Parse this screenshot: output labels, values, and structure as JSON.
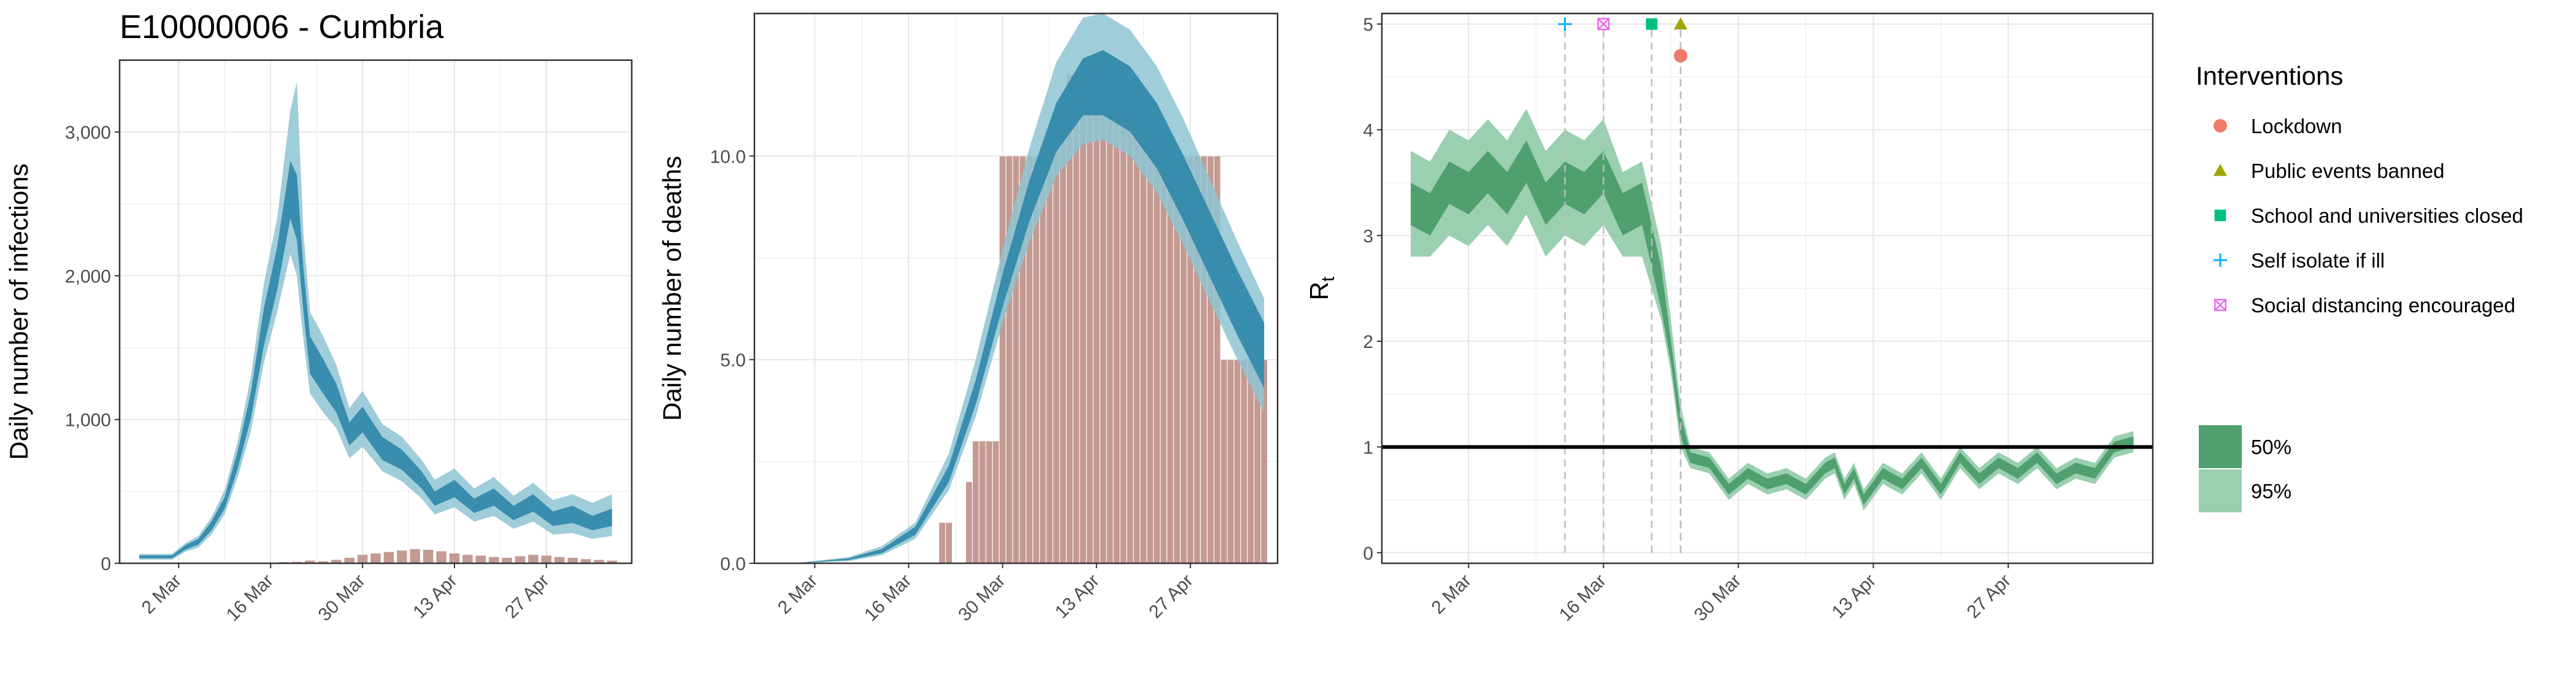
{
  "title": "E10000006 - Cumbria",
  "colors": {
    "infection_ci95": "#8ec4d2",
    "infection_ci50": "#2e86a8",
    "bars": "#c49a92",
    "rt_ci95": "#9acfaf",
    "rt_ci50": "#4f9f6f",
    "lockdown": "#f07a6b",
    "public_events": "#a3a500",
    "school": "#00bf7d",
    "self_isolate": "#00b0f6",
    "social_distancing": "#e76bf3"
  },
  "chart_data": [
    {
      "type": "area",
      "name": "infections",
      "ylabel": "Daily number of infections",
      "xlabel": "",
      "ylim": [
        0,
        3500
      ],
      "yticks": [
        0,
        1000,
        2000,
        3000
      ],
      "ytick_labels": [
        "0",
        "1,000",
        "2,000",
        "3,000"
      ],
      "xticks": [
        "2020-03-02",
        "2020-03-16",
        "2020-03-30",
        "2020-04-13",
        "2020-04-27"
      ],
      "xtick_labels": [
        "2 Mar",
        "16 Mar",
        "30 Mar",
        "13 Apr",
        "27 Apr"
      ],
      "xlim": [
        "2020-02-22",
        "2020-05-10"
      ],
      "grid": true,
      "series_points": [
        [
          "2020-02-25",
          45,
          35,
          55,
          25,
          65
        ],
        [
          "2020-03-01",
          45,
          35,
          55,
          25,
          65
        ],
        [
          "2020-03-03",
          110,
          95,
          125,
          80,
          140
        ],
        [
          "2020-03-05",
          150,
          130,
          170,
          110,
          190
        ],
        [
          "2020-03-07",
          260,
          230,
          290,
          200,
          320
        ],
        [
          "2020-03-09",
          420,
          380,
          460,
          340,
          510
        ],
        [
          "2020-03-11",
          720,
          660,
          780,
          600,
          850
        ],
        [
          "2020-03-13",
          1100,
          1010,
          1190,
          920,
          1300
        ],
        [
          "2020-03-15",
          1650,
          1520,
          1780,
          1400,
          1950
        ],
        [
          "2020-03-17",
          2050,
          1900,
          2200,
          1750,
          2400
        ],
        [
          "2020-03-19",
          2600,
          2400,
          2800,
          2150,
          3150
        ],
        [
          "2020-03-20",
          2480,
          2250,
          2700,
          2000,
          3350
        ],
        [
          "2020-03-21",
          1900,
          1750,
          2050,
          1550,
          2300
        ],
        [
          "2020-03-22",
          1450,
          1320,
          1580,
          1180,
          1750
        ],
        [
          "2020-03-24",
          1300,
          1180,
          1420,
          1050,
          1580
        ],
        [
          "2020-03-26",
          1150,
          1050,
          1250,
          940,
          1380
        ],
        [
          "2020-03-28",
          900,
          820,
          980,
          730,
          1080
        ],
        [
          "2020-03-30",
          1000,
          910,
          1090,
          810,
          1200
        ],
        [
          "2020-04-02",
          800,
          720,
          880,
          640,
          970
        ],
        [
          "2020-04-05",
          720,
          650,
          790,
          570,
          880
        ],
        [
          "2020-04-08",
          580,
          520,
          640,
          450,
          720
        ],
        [
          "2020-04-10",
          450,
          400,
          500,
          340,
          580
        ],
        [
          "2020-04-13",
          520,
          460,
          580,
          390,
          660
        ],
        [
          "2020-04-16",
          400,
          350,
          450,
          290,
          520
        ],
        [
          "2020-04-19",
          460,
          400,
          520,
          330,
          600
        ],
        [
          "2020-04-22",
          350,
          300,
          400,
          240,
          470
        ],
        [
          "2020-04-25",
          420,
          360,
          480,
          290,
          560
        ],
        [
          "2020-04-28",
          310,
          260,
          360,
          200,
          440
        ],
        [
          "2020-05-01",
          340,
          280,
          400,
          210,
          480
        ],
        [
          "2020-05-04",
          280,
          230,
          330,
          170,
          420
        ],
        [
          "2020-05-07",
          320,
          260,
          380,
          190,
          480
        ]
      ],
      "series_fields": [
        "date",
        "median",
        "ci50_low",
        "ci50_high",
        "ci95_low",
        "ci95_high"
      ],
      "bars": {
        "dates": [
          "2020-03-18",
          "2020-03-20",
          "2020-03-22",
          "2020-03-24",
          "2020-03-26",
          "2020-03-28",
          "2020-03-30",
          "2020-04-01",
          "2020-04-03",
          "2020-04-05",
          "2020-04-07",
          "2020-04-09",
          "2020-04-11",
          "2020-04-13",
          "2020-04-15",
          "2020-04-17",
          "2020-04-19",
          "2020-04-21",
          "2020-04-23",
          "2020-04-25",
          "2020-04-27",
          "2020-04-29",
          "2020-05-01",
          "2020-05-03",
          "2020-05-05",
          "2020-05-07"
        ],
        "values": [
          10,
          12,
          20,
          15,
          25,
          40,
          60,
          70,
          80,
          90,
          100,
          95,
          85,
          70,
          60,
          55,
          45,
          40,
          50,
          60,
          55,
          45,
          40,
          30,
          25,
          20
        ]
      }
    },
    {
      "type": "bar",
      "name": "deaths",
      "ylabel": "Daily number of deaths",
      "xlabel": "",
      "ylim": [
        0,
        13.5
      ],
      "yticks": [
        0,
        5,
        10
      ],
      "ytick_labels": [
        "0.0",
        "5.0",
        "10.0"
      ],
      "xticks": [
        "2020-03-02",
        "2020-03-16",
        "2020-03-30",
        "2020-04-13",
        "2020-04-27"
      ],
      "xtick_labels": [
        "2 Mar",
        "16 Mar",
        "30 Mar",
        "13 Apr",
        "27 Apr"
      ],
      "xlim": [
        "2020-02-22",
        "2020-05-10"
      ],
      "grid": true,
      "bars": {
        "dates": [
          "2020-03-21",
          "2020-03-22",
          "2020-03-25",
          "2020-03-26",
          "2020-03-27",
          "2020-03-28",
          "2020-03-29",
          "2020-03-30",
          "2020-03-31",
          "2020-04-01",
          "2020-04-02",
          "2020-04-03",
          "2020-04-04",
          "2020-04-05",
          "2020-04-06",
          "2020-04-07",
          "2020-04-08",
          "2020-04-09",
          "2020-04-10",
          "2020-04-11",
          "2020-04-12",
          "2020-04-13",
          "2020-04-14",
          "2020-04-15",
          "2020-04-16",
          "2020-04-17",
          "2020-04-18",
          "2020-04-19",
          "2020-04-20",
          "2020-04-21",
          "2020-04-22",
          "2020-04-23",
          "2020-04-24",
          "2020-04-25",
          "2020-04-26",
          "2020-04-27",
          "2020-04-28",
          "2020-04-29",
          "2020-04-30",
          "2020-05-01",
          "2020-05-02",
          "2020-05-03",
          "2020-05-04",
          "2020-05-05",
          "2020-05-06",
          "2020-05-07",
          "2020-05-08"
        ],
        "values": [
          1,
          1,
          2,
          3,
          3,
          3,
          3,
          10,
          10,
          10,
          10,
          10,
          10,
          10,
          10,
          11,
          11,
          12,
          12,
          12,
          12,
          12,
          12,
          11,
          11,
          11,
          11,
          12,
          11,
          10,
          10,
          10,
          10,
          10,
          10,
          10,
          10,
          10,
          10,
          10,
          5,
          5,
          5,
          5,
          5,
          5,
          5
        ]
      },
      "series_points": [
        [
          "2020-02-28",
          0.0,
          0.0,
          0.0,
          0.0,
          0.0
        ],
        [
          "2020-03-07",
          0.1,
          0.08,
          0.12,
          0.05,
          0.15
        ],
        [
          "2020-03-12",
          0.3,
          0.25,
          0.35,
          0.2,
          0.42
        ],
        [
          "2020-03-17",
          0.8,
          0.7,
          0.9,
          0.6,
          1.0
        ],
        [
          "2020-03-22",
          2.2,
          2.0,
          2.4,
          1.8,
          2.7
        ],
        [
          "2020-03-26",
          4.2,
          3.9,
          4.5,
          3.6,
          5.0
        ],
        [
          "2020-03-30",
          6.7,
          6.3,
          7.1,
          5.9,
          7.7
        ],
        [
          "2020-04-03",
          8.9,
          8.4,
          9.4,
          7.9,
          10.2
        ],
        [
          "2020-04-07",
          10.7,
          10.1,
          11.3,
          9.5,
          12.3
        ],
        [
          "2020-04-11",
          11.7,
          11.0,
          12.4,
          10.3,
          13.4
        ],
        [
          "2020-04-14",
          11.8,
          11.0,
          12.6,
          10.4,
          13.5
        ],
        [
          "2020-04-18",
          11.4,
          10.6,
          12.2,
          10.0,
          13.1
        ],
        [
          "2020-04-22",
          10.5,
          9.7,
          11.3,
          9.1,
          12.2
        ],
        [
          "2020-04-26",
          9.2,
          8.4,
          10.0,
          7.8,
          10.9
        ],
        [
          "2020-04-30",
          7.8,
          7.0,
          8.6,
          6.4,
          9.4
        ],
        [
          "2020-05-04",
          6.4,
          5.6,
          7.2,
          5.0,
          7.9
        ],
        [
          "2020-05-08",
          5.1,
          4.3,
          5.9,
          3.7,
          6.5
        ]
      ],
      "series_fields": [
        "date",
        "median",
        "ci50_low",
        "ci50_high",
        "ci95_low",
        "ci95_high"
      ]
    },
    {
      "type": "area",
      "name": "rt",
      "ylabel": "R",
      "ylabel_subscript": "t",
      "xlabel": "",
      "ylim": [
        -0.1,
        5.1
      ],
      "yticks": [
        0,
        1,
        2,
        3,
        4,
        5
      ],
      "ytick_labels": [
        "0",
        "1",
        "2",
        "3",
        "4",
        "5"
      ],
      "xticks": [
        "2020-03-02",
        "2020-03-16",
        "2020-03-30",
        "2020-04-13",
        "2020-04-27"
      ],
      "xtick_labels": [
        "2 Mar",
        "16 Mar",
        "30 Mar",
        "13 Apr",
        "27 Apr"
      ],
      "xlim": [
        "2020-02-22",
        "2020-05-12"
      ],
      "grid": true,
      "reference_line": 1,
      "series_points": [
        [
          "2020-02-25",
          3.3,
          3.1,
          3.5,
          2.8,
          3.8
        ],
        [
          "2020-02-27",
          3.2,
          3.0,
          3.4,
          2.8,
          3.7
        ],
        [
          "2020-02-29",
          3.5,
          3.3,
          3.7,
          3.0,
          4.0
        ],
        [
          "2020-03-02",
          3.4,
          3.2,
          3.6,
          2.9,
          3.9
        ],
        [
          "2020-03-04",
          3.6,
          3.4,
          3.8,
          3.1,
          4.1
        ],
        [
          "2020-03-06",
          3.4,
          3.2,
          3.6,
          2.9,
          3.9
        ],
        [
          "2020-03-08",
          3.7,
          3.5,
          3.9,
          3.2,
          4.2
        ],
        [
          "2020-03-10",
          3.3,
          3.1,
          3.5,
          2.8,
          3.8
        ],
        [
          "2020-03-12",
          3.5,
          3.3,
          3.7,
          3.0,
          4.0
        ],
        [
          "2020-03-14",
          3.4,
          3.2,
          3.6,
          2.9,
          3.9
        ],
        [
          "2020-03-16",
          3.6,
          3.4,
          3.8,
          3.1,
          4.1
        ],
        [
          "2020-03-18",
          3.2,
          3.0,
          3.4,
          2.8,
          3.6
        ],
        [
          "2020-03-20",
          3.3,
          3.1,
          3.5,
          2.8,
          3.7
        ],
        [
          "2020-03-22",
          2.5,
          2.3,
          2.7,
          2.2,
          2.9
        ],
        [
          "2020-03-23",
          1.9,
          1.8,
          2.0,
          1.7,
          2.2
        ],
        [
          "2020-03-24",
          1.2,
          1.1,
          1.3,
          1.0,
          1.4
        ],
        [
          "2020-03-25",
          0.9,
          0.85,
          0.95,
          0.8,
          1.0
        ],
        [
          "2020-03-27",
          0.85,
          0.8,
          0.9,
          0.75,
          0.95
        ],
        [
          "2020-03-29",
          0.6,
          0.55,
          0.65,
          0.5,
          0.7
        ],
        [
          "2020-03-31",
          0.75,
          0.7,
          0.8,
          0.65,
          0.85
        ],
        [
          "2020-04-02",
          0.65,
          0.6,
          0.7,
          0.55,
          0.75
        ],
        [
          "2020-04-04",
          0.7,
          0.65,
          0.75,
          0.6,
          0.8
        ],
        [
          "2020-04-06",
          0.6,
          0.55,
          0.65,
          0.5,
          0.7
        ],
        [
          "2020-04-08",
          0.8,
          0.75,
          0.85,
          0.7,
          0.9
        ],
        [
          "2020-04-09",
          0.85,
          0.8,
          0.9,
          0.75,
          0.95
        ],
        [
          "2020-04-10",
          0.6,
          0.55,
          0.65,
          0.5,
          0.7
        ],
        [
          "2020-04-11",
          0.75,
          0.7,
          0.8,
          0.65,
          0.85
        ],
        [
          "2020-04-12",
          0.5,
          0.45,
          0.55,
          0.4,
          0.6
        ],
        [
          "2020-04-14",
          0.75,
          0.7,
          0.8,
          0.65,
          0.85
        ],
        [
          "2020-04-16",
          0.65,
          0.6,
          0.7,
          0.55,
          0.75
        ],
        [
          "2020-04-18",
          0.85,
          0.8,
          0.9,
          0.75,
          0.95
        ],
        [
          "2020-04-20",
          0.6,
          0.55,
          0.65,
          0.5,
          0.7
        ],
        [
          "2020-04-22",
          0.9,
          0.85,
          0.95,
          0.8,
          1.0
        ],
        [
          "2020-04-24",
          0.7,
          0.65,
          0.75,
          0.6,
          0.8
        ],
        [
          "2020-04-26",
          0.85,
          0.8,
          0.9,
          0.75,
          0.95
        ],
        [
          "2020-04-28",
          0.75,
          0.7,
          0.8,
          0.65,
          0.85
        ],
        [
          "2020-04-30",
          0.9,
          0.85,
          0.95,
          0.8,
          1.0
        ],
        [
          "2020-05-02",
          0.7,
          0.65,
          0.75,
          0.6,
          0.8
        ],
        [
          "2020-05-04",
          0.8,
          0.75,
          0.85,
          0.7,
          0.9
        ],
        [
          "2020-05-06",
          0.75,
          0.7,
          0.8,
          0.65,
          0.85
        ],
        [
          "2020-05-08",
          1.0,
          0.95,
          1.05,
          0.9,
          1.1
        ],
        [
          "2020-05-10",
          1.05,
          1.0,
          1.1,
          0.95,
          1.15
        ]
      ],
      "series_fields": [
        "date",
        "median",
        "ci50_low",
        "ci50_high",
        "ci95_low",
        "ci95_high"
      ],
      "interventions": [
        {
          "label": "Self isolate if ill",
          "date": "2020-03-12",
          "shape": "plus",
          "color_key": "self_isolate",
          "y": 5.0
        },
        {
          "label": "Social distancing encouraged",
          "date": "2020-03-16",
          "shape": "boxx",
          "color_key": "social_distancing",
          "y": 5.0
        },
        {
          "label": "School and universities closed",
          "date": "2020-03-21",
          "shape": "square",
          "color_key": "school",
          "y": 5.0
        },
        {
          "label": "Public events banned",
          "date": "2020-03-24",
          "shape": "triangle",
          "color_key": "public_events",
          "y": 5.0
        },
        {
          "label": "Lockdown",
          "date": "2020-03-24",
          "shape": "circle",
          "color_key": "lockdown",
          "y": 4.7
        }
      ]
    }
  ],
  "legend": {
    "title": "Interventions",
    "items": [
      {
        "label": "Lockdown",
        "shape": "circle",
        "color_key": "lockdown"
      },
      {
        "label": "Public events banned",
        "shape": "triangle",
        "color_key": "public_events"
      },
      {
        "label": "School and universities closed",
        "shape": "square",
        "color_key": "school"
      },
      {
        "label": "Self isolate if ill",
        "shape": "plus",
        "color_key": "self_isolate"
      },
      {
        "label": "Social distancing encouraged",
        "shape": "boxx",
        "color_key": "social_distancing"
      }
    ],
    "ci_items": [
      {
        "label": "50%",
        "color_key": "rt_ci50"
      },
      {
        "label": "95%",
        "color_key": "rt_ci95"
      }
    ]
  }
}
